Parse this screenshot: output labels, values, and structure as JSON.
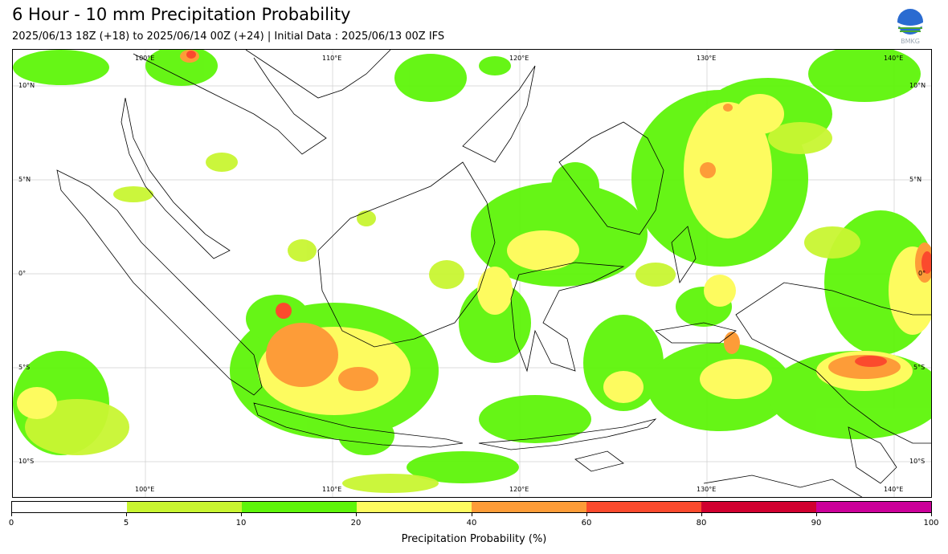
{
  "header": {
    "title": "6 Hour - 10 mm Precipitation Probability",
    "subtitle": "2025/06/13 18Z (+18) to 2025/06/14 00Z (+24) | Initial Data : 2025/06/13 00Z IFS",
    "logo_text": "BMKG"
  },
  "map": {
    "lon_labels": [
      "100°E",
      "110°E",
      "120°E",
      "130°E",
      "140°E"
    ],
    "lat_labels": [
      "10°N",
      "5°N",
      "0°",
      "5°S",
      "10°S"
    ],
    "colors": {
      "land_outline": "#000000",
      "gridline": "#cfcfcf",
      "sea": "#ffffff"
    }
  },
  "colorbar": {
    "label": "Precipitation Probability (%)",
    "ticks": [
      "0",
      "5",
      "10",
      "20",
      "40",
      "60",
      "80",
      "90",
      "100"
    ],
    "colors": [
      "#ffffff",
      "#c8f531",
      "#5ef50a",
      "#fdfb5f",
      "#fd9c38",
      "#fb4a2d",
      "#d1002f",
      "#cc0099"
    ]
  }
}
